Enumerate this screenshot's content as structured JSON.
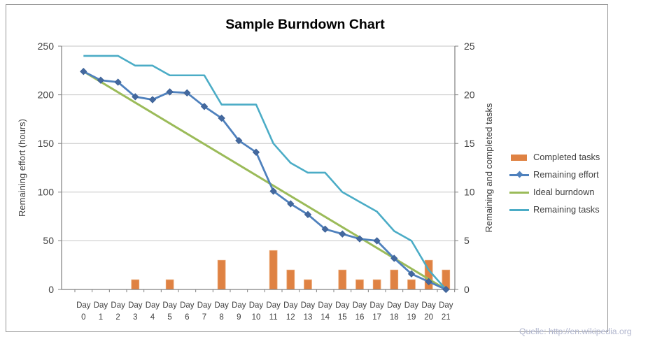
{
  "chart": {
    "title": "Sample Burndown Chart",
    "left_axis_title": "Remaining effort (hours)",
    "right_axis_title": "Remaining and  completed tasks",
    "watermark": "Quelle: http://en.wikipedia.org"
  },
  "legend": {
    "items": [
      {
        "label": "Completed tasks",
        "color": "#DF8243",
        "swatch": "bar"
      },
      {
        "label": "Remaining effort",
        "color": "#4F81BD",
        "swatch": "line-diamond"
      },
      {
        "label": "Ideal burndown",
        "color": "#9BBB59",
        "swatch": "line"
      },
      {
        "label": "Remaining tasks",
        "color": "#4BACC6",
        "swatch": "line"
      }
    ]
  },
  "chart_data": {
    "type": "combo-bar-line",
    "title": "Sample Burndown Chart",
    "x_label_prefix": "Day",
    "days": [
      0,
      1,
      2,
      3,
      4,
      5,
      6,
      7,
      8,
      9,
      10,
      11,
      12,
      13,
      14,
      15,
      16,
      17,
      18,
      19,
      20,
      21
    ],
    "left_axis": {
      "title": "Remaining effort (hours)",
      "min": 0,
      "max": 250,
      "step": 50
    },
    "right_axis": {
      "title": "Remaining and  completed tasks",
      "min": 0,
      "max": 25,
      "step": 5
    },
    "grid": true,
    "legend_position": "right",
    "series": [
      {
        "name": "Completed tasks",
        "type": "bar",
        "axis": "right",
        "color": "#DF8243",
        "values": [
          0,
          0,
          0,
          1,
          0,
          1,
          0,
          0,
          3,
          0,
          0,
          4,
          2,
          1,
          0,
          2,
          1,
          1,
          2,
          1,
          3,
          2
        ]
      },
      {
        "name": "Remaining effort",
        "type": "line",
        "marker": "diamond",
        "axis": "left",
        "color": "#4F81BD",
        "values": [
          224,
          215,
          213,
          198,
          195,
          203,
          202,
          188,
          176,
          153,
          141,
          101,
          88,
          77,
          62,
          57,
          52,
          50,
          32,
          16,
          8,
          0
        ]
      },
      {
        "name": "Ideal burndown",
        "type": "line",
        "axis": "left",
        "color": "#9BBB59",
        "start": 224,
        "end": 0
      },
      {
        "name": "Remaining tasks",
        "type": "line",
        "axis": "right",
        "color": "#4BACC6",
        "values": [
          24,
          24,
          24,
          23,
          23,
          22,
          22,
          22,
          19,
          19,
          19,
          15,
          13,
          12,
          12,
          10,
          9,
          8,
          6,
          5,
          2,
          0
        ]
      }
    ]
  }
}
